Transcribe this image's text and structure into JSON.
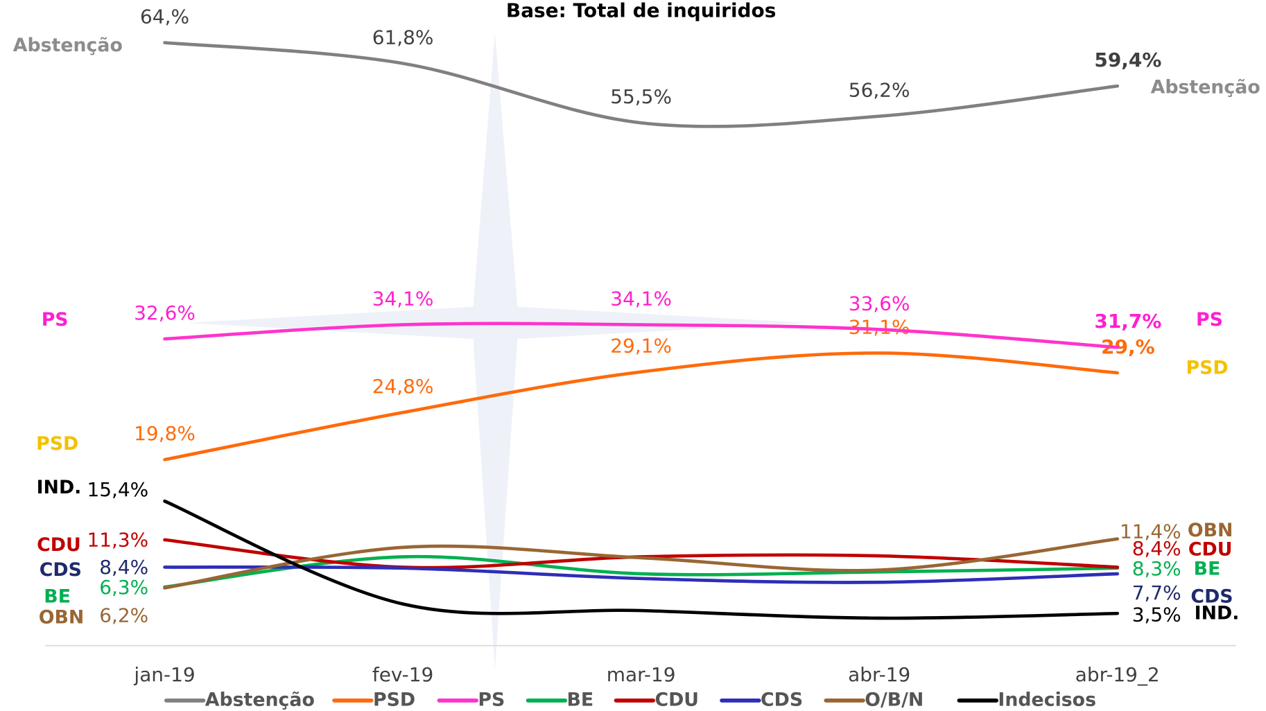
{
  "chart_data": {
    "type": "line",
    "title": "Base: Total de inquiridos",
    "categories": [
      "jan-19",
      "fev-19",
      "mar-19",
      "abr-19",
      "abr-19_2"
    ],
    "series": [
      {
        "name": "Abstenção",
        "side_label": "Abstenção",
        "color": "#808080",
        "label_color": "#8c8c8c",
        "values": [
          64,
          61.8,
          55.5,
          56.2,
          59.4
        ],
        "value_labels": [
          "64,%",
          "61,8%",
          "55,5%",
          "56,2%",
          "59,4%"
        ]
      },
      {
        "name": "PSD",
        "side_label": "PSD",
        "color": "#ff6a0a",
        "label_color": "#f5c000",
        "values": [
          19.8,
          24.8,
          29.1,
          31.1,
          29
        ],
        "value_labels": [
          "19,8%",
          "24,8%",
          "29,1%",
          "31,1%",
          "29,%"
        ]
      },
      {
        "name": "PS",
        "side_label": "PS",
        "color": "#ff33cc",
        "label_color": "#ff1fd0",
        "values": [
          32.6,
          34.1,
          34.1,
          33.6,
          31.7
        ],
        "value_labels": [
          "32,6%",
          "34,1%",
          "34,1%",
          "33,6%",
          "31,7%"
        ]
      },
      {
        "name": "BE",
        "side_label": "BE",
        "color": "#00b050",
        "label_color": "#00b050",
        "values": [
          6.3,
          9.5,
          7.7,
          7.9,
          8.3
        ],
        "value_labels": [
          "6,3%",
          null,
          null,
          null,
          "8,3%"
        ]
      },
      {
        "name": "CDU",
        "side_label": "CDU",
        "color": "#c00000",
        "label_color": "#c00000",
        "values": [
          11.3,
          8.4,
          9.5,
          9.6,
          8.4
        ],
        "value_labels": [
          "11,3%",
          null,
          null,
          null,
          "8,4%"
        ]
      },
      {
        "name": "CDS",
        "side_label": "CDS",
        "color": "#2e2eb8",
        "label_color": "#1f2a6b",
        "values": [
          8.4,
          8.3,
          7.2,
          6.8,
          7.7
        ],
        "value_labels": [
          "8,4%",
          null,
          null,
          null,
          "7,7%"
        ]
      },
      {
        "name": "O/B/N",
        "side_label": "OBN",
        "color": "#996633",
        "label_color": "#996633",
        "values": [
          6.2,
          10.5,
          9.4,
          8.1,
          11.4
        ],
        "value_labels": [
          "6,2%",
          null,
          null,
          null,
          "11,4%"
        ]
      },
      {
        "name": "Indecisos",
        "side_label": "IND.",
        "color": "#000000",
        "label_color": "#000000",
        "values": [
          15.4,
          4.5,
          3.8,
          3.0,
          3.5
        ],
        "value_labels": [
          "15,4%",
          null,
          null,
          null,
          "3,5%"
        ]
      }
    ]
  }
}
